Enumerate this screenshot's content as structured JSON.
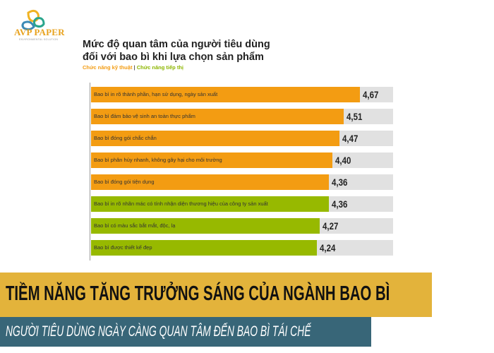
{
  "logo": {
    "text": "AVP PAPER",
    "subtext": "ENVIRONMENTAL SOLUTION"
  },
  "chart_data": {
    "type": "bar",
    "orientation": "horizontal",
    "title_lines": [
      "Mức độ quan tâm của người tiêu dùng",
      "đối với bao bì khi lựa chọn sản phẩm"
    ],
    "legend": [
      {
        "name": "Chức năng kỹ thuật",
        "color": "#f39c12"
      },
      {
        "name": "Chức năng tiếp thị",
        "color": "#97b900"
      }
    ],
    "legend_separator": "|",
    "xlim": [
      2,
      5
    ],
    "track_color": "#e1e1e1",
    "categories": [
      "Bao bì in rõ thành phần, hạn sử dụng, ngày sản xuất",
      "Bao bì đảm bảo vệ sinh an toàn thực phẩm",
      "Bao bì đóng gói chắc chắn",
      "Bao bì phân hủy nhanh, không gây hại cho môi trường",
      "Bao bì đóng gói tiện dụng",
      "Bao bì in rõ nhãn mác có tính nhận diện thương hiệu của công ty sản xuất",
      "Bao bì có màu sắc bắt mắt, độc, lạ",
      "Bao bì được thiết kế đẹp"
    ],
    "values": [
      4.67,
      4.51,
      4.47,
      4.4,
      4.36,
      4.36,
      4.27,
      4.24
    ],
    "value_labels": [
      "4,67",
      "4,51",
      "4,47",
      "4,40",
      "4,36",
      "4,36",
      "4,27",
      "4,24"
    ],
    "groups": [
      0,
      0,
      0,
      0,
      0,
      1,
      1,
      1
    ]
  },
  "banner": {
    "headline": "TIỀM NĂNG TĂNG TRƯỞNG SÁNG CỦA NGÀNH BAO BÌ",
    "subheadline": "NGƯỜI TIÊU DÙNG NGÀY CÀNG QUAN TÂM ĐẾN BAO BÌ TÁI CHẾ",
    "headline_bg": "#e3b33b",
    "subheadline_bg": "#386678"
  }
}
